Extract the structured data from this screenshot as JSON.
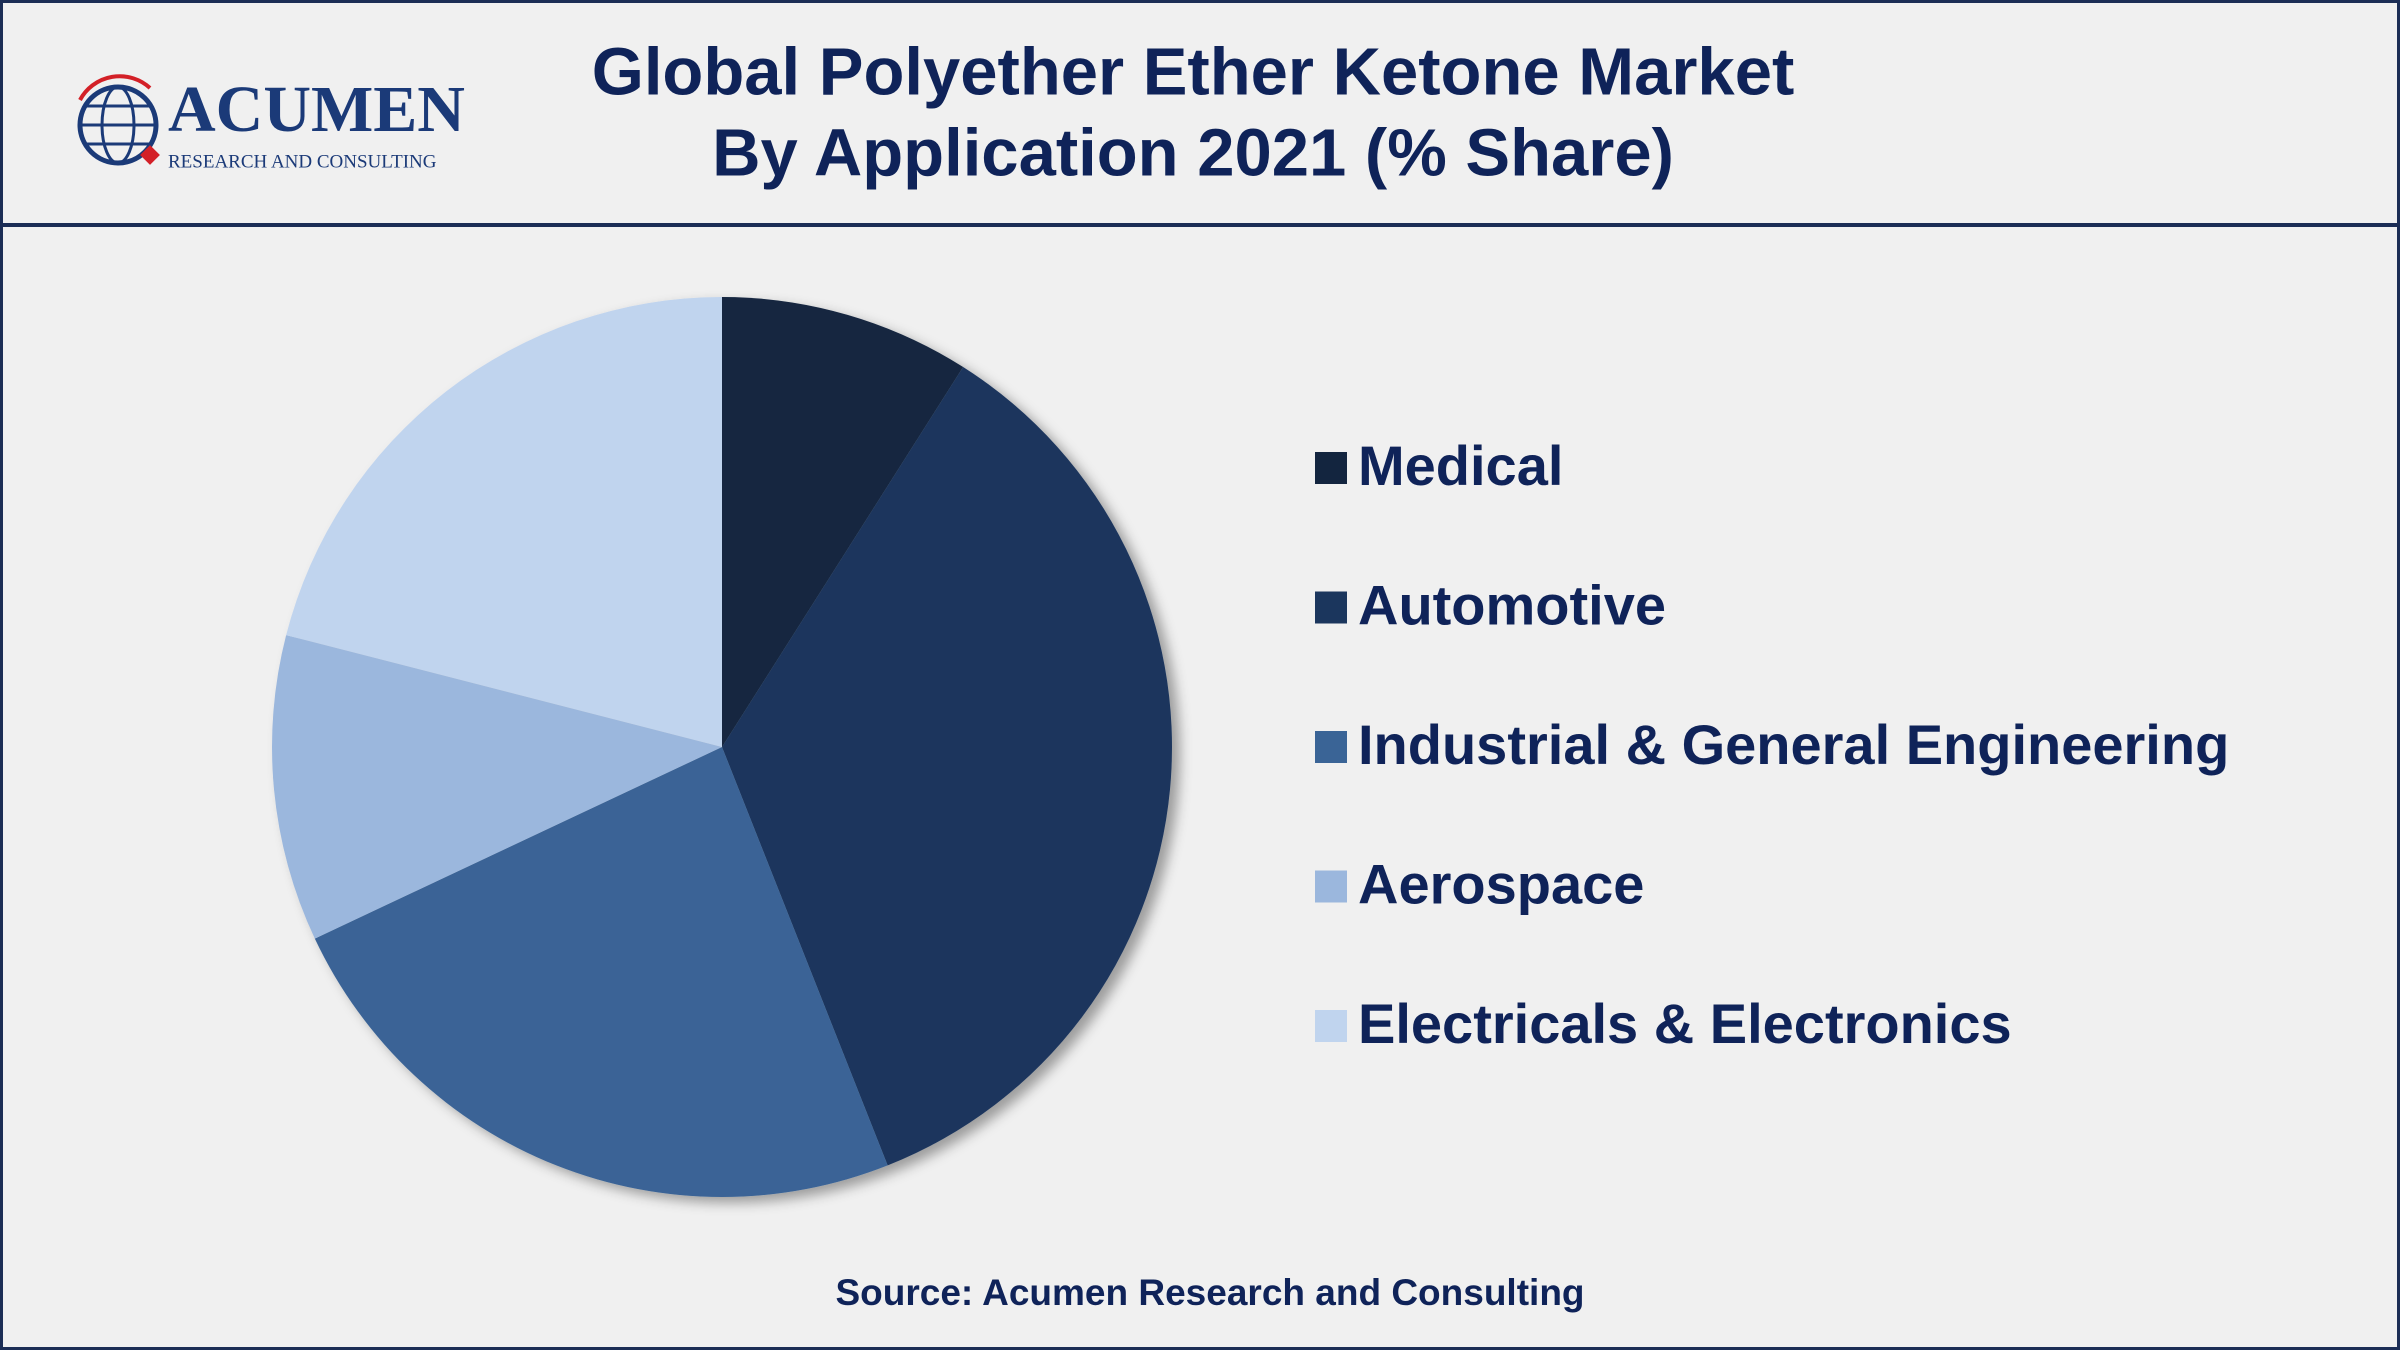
{
  "logo": {
    "name": "ACUMEN",
    "tagline": "RESEARCH AND CONSULTING"
  },
  "chart_data": {
    "type": "pie",
    "title": "Global Polyether Ether Ketone Market",
    "subtitle": "By Application 2021 (% Share)",
    "categories": [
      "Medical",
      "Automotive",
      "Industrial & General Engineering",
      "Aerospace",
      "Electricals & Electronics"
    ],
    "values": [
      9,
      35,
      24,
      11,
      21
    ],
    "colors": [
      "#13253f",
      "#1b365d",
      "#3a6496",
      "#9bb7dd",
      "#c0d4ee"
    ],
    "legend": "right",
    "source": "Source: Acumen Research and Consulting"
  }
}
